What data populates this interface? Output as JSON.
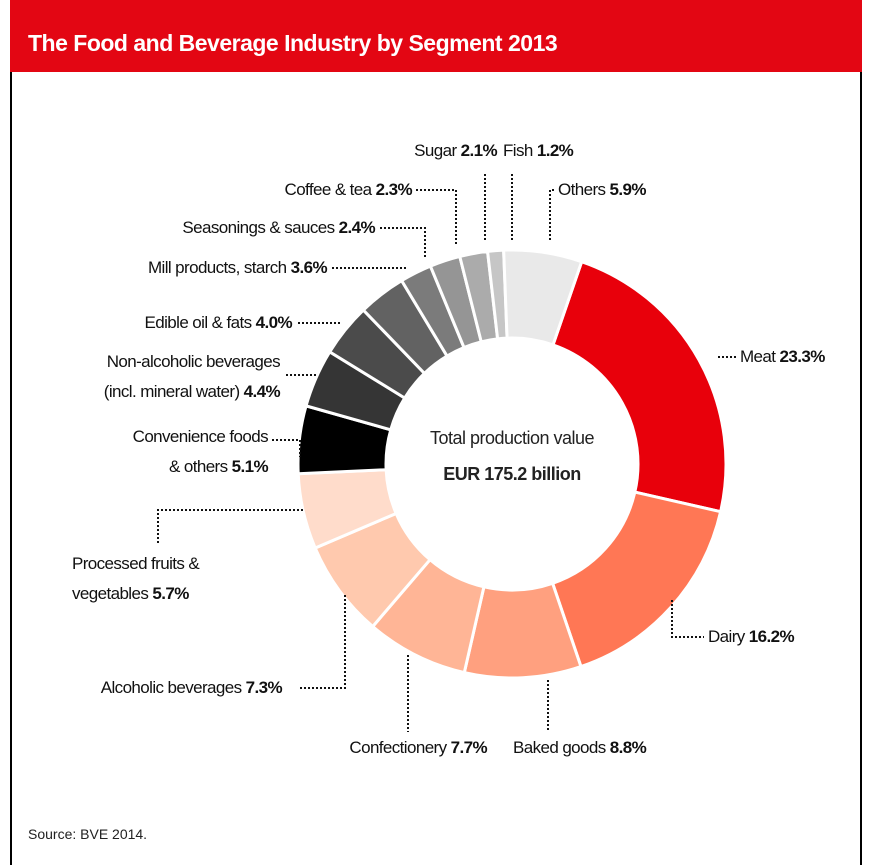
{
  "chart_data": {
    "type": "pie",
    "title": "The Food and Beverage Industry by Segment 2013",
    "categories": [
      "Meat",
      "Dairy",
      "Baked goods",
      "Confectionery",
      "Alcoholic beverages",
      "Processed fruits &\nvegetables",
      "Convenience foods\n& others",
      "Non-alcoholic beverages\n(incl. mineral water)",
      "Edible oil & fats",
      "Mill products, starch",
      "Seasonings & sauces",
      "Coffee & tea",
      "Sugar",
      "Fish",
      "Others"
    ],
    "values": [
      23.3,
      16.2,
      8.8,
      7.7,
      7.3,
      5.7,
      5.1,
      4.4,
      4.0,
      3.6,
      2.4,
      2.3,
      2.1,
      1.2,
      5.9
    ],
    "value_labels": [
      "23.3%",
      "16.2%",
      "8.8%",
      "7.7%",
      "7.3%",
      "5.7%",
      "5.1%",
      "4.4%",
      "4.0%",
      "3.6%",
      "2.4%",
      "2.3%",
      "2.1%",
      "1.2%",
      "5.9%"
    ],
    "colors": [
      "#e8000b",
      "#ff7755",
      "#ffa07f",
      "#ffb596",
      "#ffc9ae",
      "#ffdccb",
      "#000000",
      "#353535",
      "#4b4b4b",
      "#626262",
      "#7b7b7b",
      "#959595",
      "#ababab",
      "#c6c6c6",
      "#e9e9e9"
    ],
    "center_text": [
      "Total production value",
      "EUR 175.2 billion"
    ],
    "source": "Source: BVE 2014."
  }
}
